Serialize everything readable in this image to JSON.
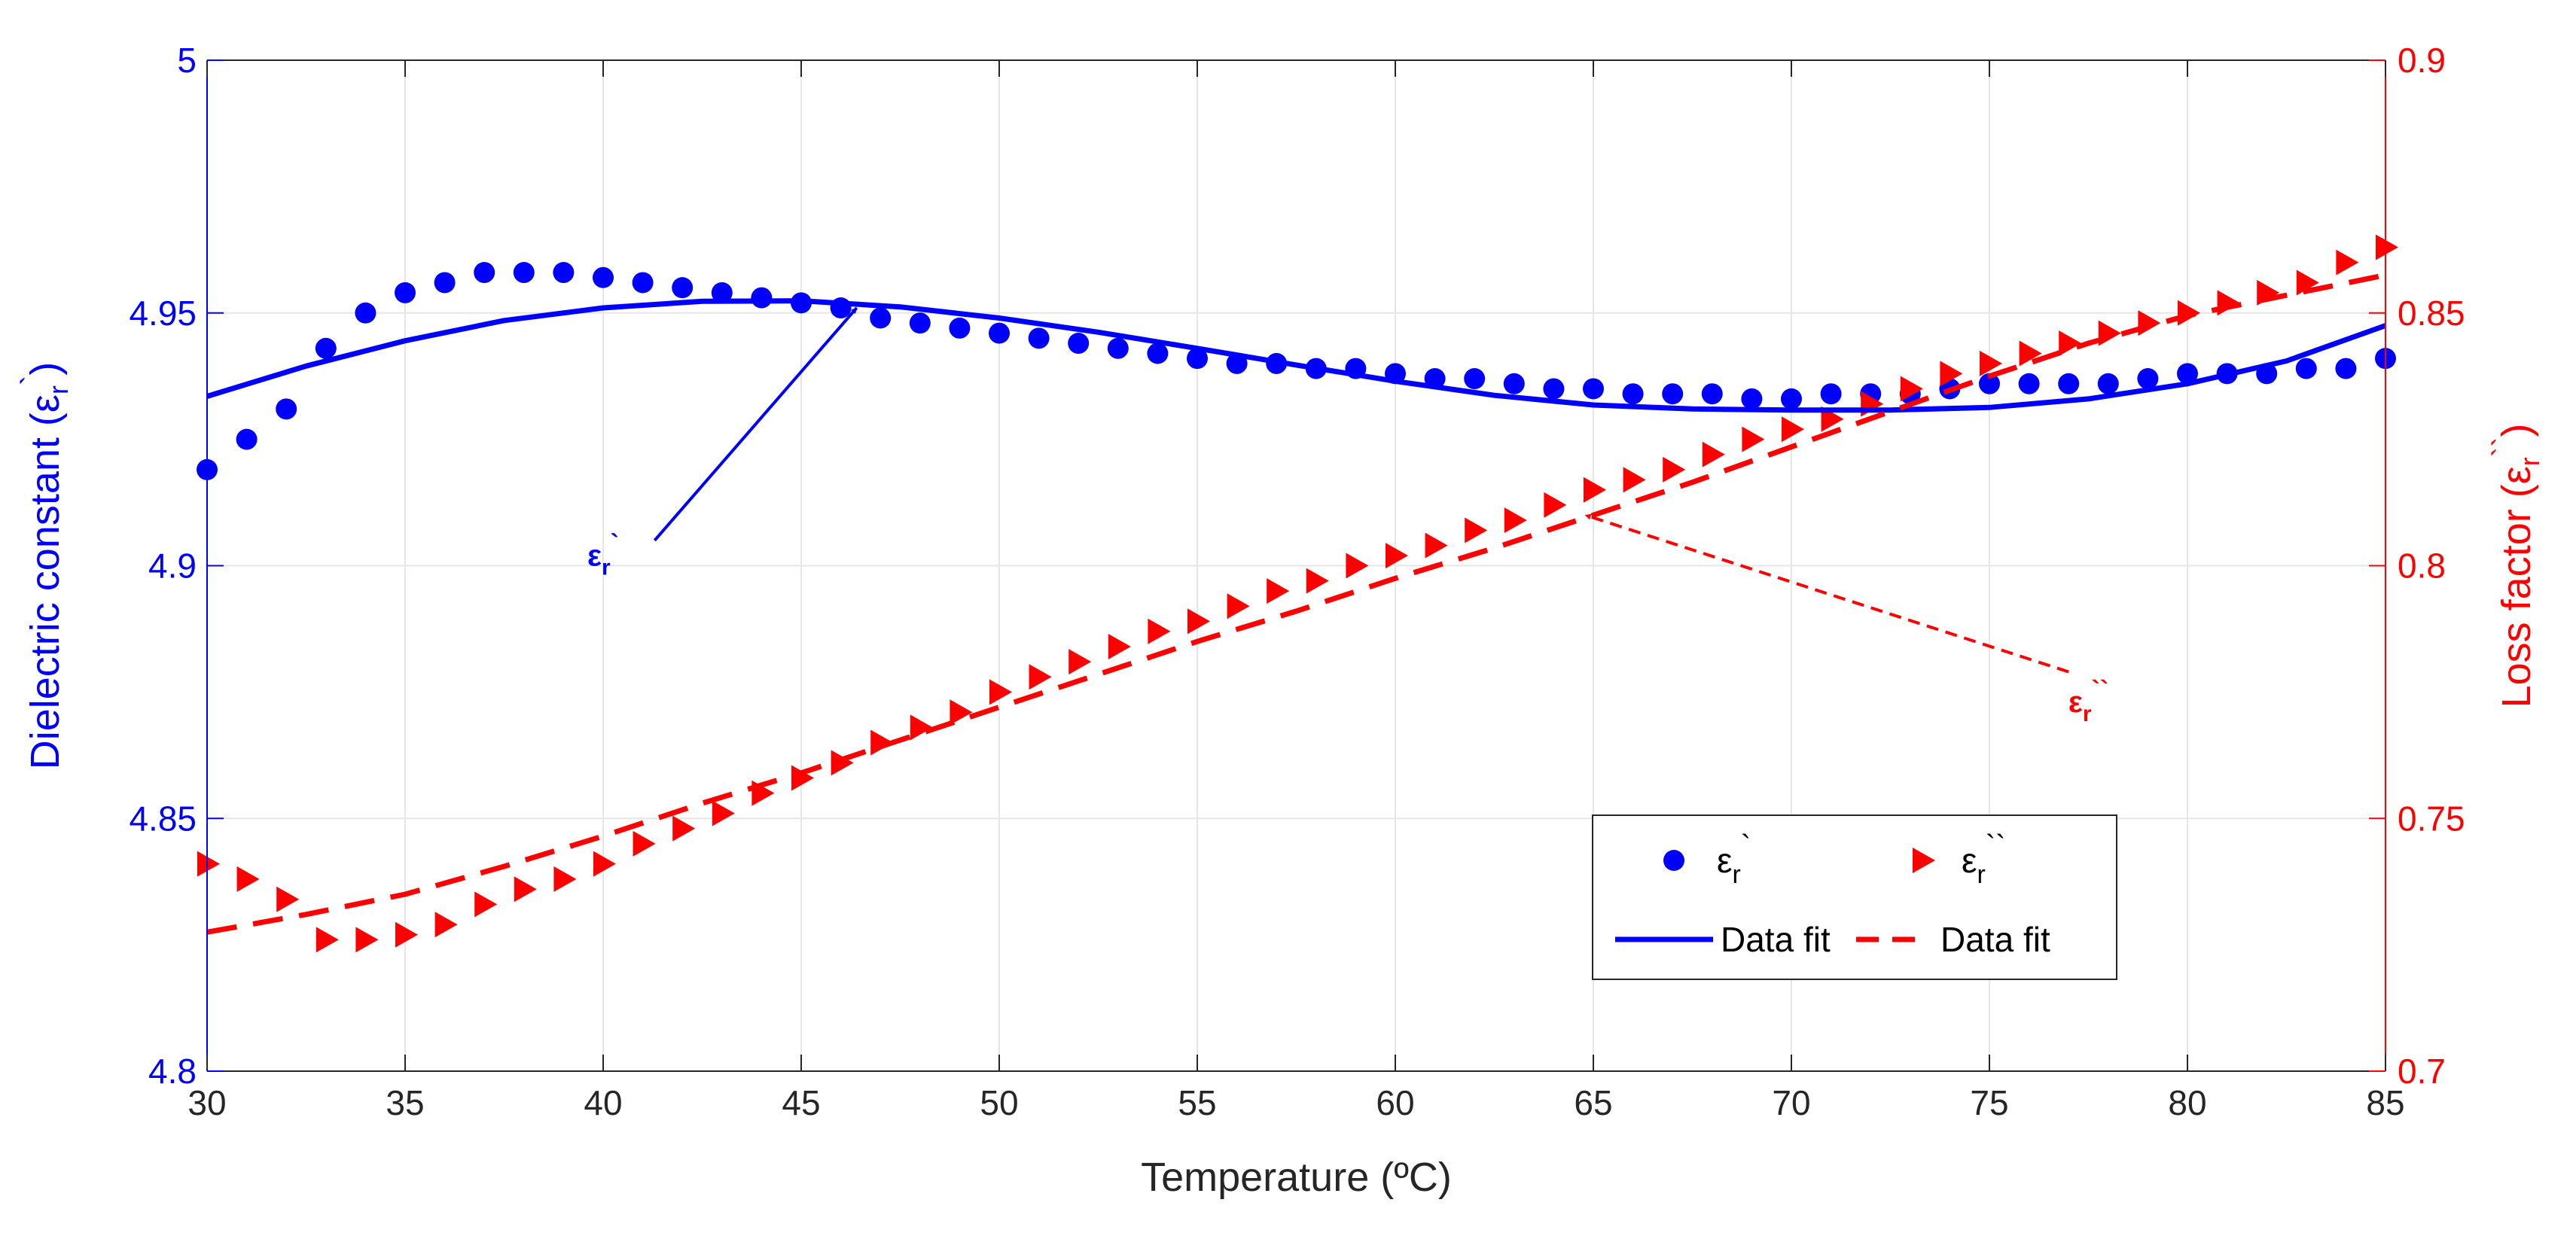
{
  "chart_data": {
    "type": "line",
    "x_axis": {
      "label": "Temperature (ºC)",
      "range": [
        30,
        85
      ],
      "ticks": [
        "30",
        "35",
        "40",
        "45",
        "50",
        "55",
        "60",
        "65",
        "70",
        "75",
        "80",
        "85"
      ]
    },
    "y_left": {
      "label_main": "Dielectric constant (ε",
      "label_sub": "r",
      "label_sup": "`",
      "label_tail": ")",
      "range": [
        4.8,
        5.0
      ],
      "ticks": [
        "4.8",
        "4.85",
        "4.9",
        "4.95",
        "5"
      ],
      "color": "#0000ff"
    },
    "y_right": {
      "label_main": "Loss factor (ε",
      "label_sub": "r",
      "label_sup": "``",
      "label_tail": ")",
      "range": [
        0.7,
        0.9
      ],
      "ticks": [
        "0.7",
        "0.75",
        "0.8",
        "0.85",
        "0.9"
      ],
      "color": "#ff0000"
    },
    "grid": true,
    "series": [
      {
        "name": "εr`",
        "kind": "markers",
        "marker": "circle",
        "axis": "left",
        "color": "#0000ff",
        "x": [
          30,
          31,
          32,
          33,
          34,
          35,
          36,
          37,
          38,
          39,
          40,
          41,
          42,
          43,
          44,
          45,
          46,
          47,
          48,
          49,
          50,
          51,
          52,
          53,
          54,
          55,
          56,
          57,
          58,
          59,
          60,
          61,
          62,
          63,
          64,
          65,
          66,
          67,
          68,
          69,
          70,
          71,
          72,
          73,
          74,
          75,
          76,
          77,
          78,
          79,
          80,
          81,
          82,
          83,
          84,
          85
        ],
        "y": [
          4.919,
          4.925,
          4.931,
          4.943,
          4.95,
          4.954,
          4.956,
          4.958,
          4.958,
          4.958,
          4.957,
          4.956,
          4.955,
          4.954,
          4.953,
          4.952,
          4.951,
          4.949,
          4.948,
          4.947,
          4.946,
          4.945,
          4.944,
          4.943,
          4.942,
          4.941,
          4.94,
          4.94,
          4.939,
          4.939,
          4.938,
          4.937,
          4.937,
          4.936,
          4.935,
          4.935,
          4.934,
          4.934,
          4.934,
          4.933,
          4.933,
          4.934,
          4.934,
          4.934,
          4.935,
          4.936,
          4.936,
          4.936,
          4.936,
          4.937,
          4.938,
          4.938,
          4.938,
          4.939,
          4.939,
          4.941
        ]
      },
      {
        "name": "εr``",
        "kind": "markers",
        "marker": "triangle-right",
        "axis": "right",
        "color": "#ff0000",
        "x": [
          30,
          31,
          32,
          33,
          34,
          35,
          36,
          37,
          38,
          39,
          40,
          41,
          42,
          43,
          44,
          45,
          46,
          47,
          48,
          49,
          50,
          51,
          52,
          53,
          54,
          55,
          56,
          57,
          58,
          59,
          60,
          61,
          62,
          63,
          64,
          65,
          66,
          67,
          68,
          69,
          70,
          71,
          72,
          73,
          74,
          75,
          76,
          77,
          78,
          79,
          80,
          81,
          82,
          83,
          84,
          85
        ],
        "y": [
          0.741,
          0.738,
          0.734,
          0.726,
          0.726,
          0.727,
          0.729,
          0.733,
          0.736,
          0.738,
          0.741,
          0.745,
          0.748,
          0.751,
          0.755,
          0.758,
          0.761,
          0.765,
          0.768,
          0.771,
          0.775,
          0.778,
          0.781,
          0.784,
          0.787,
          0.789,
          0.792,
          0.795,
          0.797,
          0.8,
          0.802,
          0.804,
          0.807,
          0.809,
          0.812,
          0.815,
          0.817,
          0.819,
          0.822,
          0.825,
          0.827,
          0.829,
          0.832,
          0.835,
          0.838,
          0.84,
          0.842,
          0.844,
          0.846,
          0.848,
          0.85,
          0.852,
          0.854,
          0.856,
          0.86,
          0.863
        ]
      },
      {
        "name": "Data fit",
        "kind": "line",
        "style": "solid",
        "axis": "left",
        "color": "#0000ff",
        "x": [
          30,
          32.5,
          35,
          37.5,
          40,
          42.5,
          45,
          47.5,
          50,
          52.5,
          55,
          57.5,
          60,
          62.5,
          65,
          67.5,
          70,
          72.5,
          75,
          77.5,
          80,
          82.5,
          85
        ],
        "y": [
          4.9335,
          4.9395,
          4.9445,
          4.9485,
          4.951,
          4.9523,
          4.9524,
          4.9512,
          4.949,
          4.9462,
          4.943,
          4.9397,
          4.9365,
          4.9337,
          4.9318,
          4.931,
          4.9308,
          4.9308,
          4.9313,
          4.933,
          4.936,
          4.9405,
          4.9475
        ]
      },
      {
        "name": "Data fit",
        "kind": "line",
        "style": "dashed",
        "axis": "right",
        "color": "#ff0000",
        "x": [
          30,
          32.5,
          35,
          37.5,
          40,
          42.5,
          45,
          47.5,
          50,
          52.5,
          55,
          57.5,
          60,
          62.5,
          65,
          67.5,
          70,
          72.5,
          75,
          77.5,
          80,
          82.5,
          85
        ],
        "y": [
          0.7275,
          0.731,
          0.735,
          0.7405,
          0.7465,
          0.753,
          0.759,
          0.7655,
          0.772,
          0.7785,
          0.785,
          0.791,
          0.7975,
          0.8035,
          0.81,
          0.8165,
          0.8235,
          0.8305,
          0.8375,
          0.844,
          0.8495,
          0.8535,
          0.8575
        ]
      }
    ],
    "legend": {
      "position": "lower-right",
      "items": [
        {
          "symbol": "circle",
          "color": "#0000ff",
          "text": "ε",
          "sub": "r",
          "sup": "`"
        },
        {
          "symbol": "triangle-right",
          "color": "#ff0000",
          "text": "ε",
          "sub": "r",
          "sup": "``"
        },
        {
          "symbol": "solid-line",
          "color": "#0000ff",
          "text": "Data fit"
        },
        {
          "symbol": "dashed-line",
          "color": "#ff0000",
          "text": "Data fit"
        }
      ]
    },
    "annotations": [
      {
        "text": "ε",
        "sub": "r",
        "sup": "`",
        "color": "#0000ff",
        "arrow": "solid",
        "from": [
          41.3,
          4.905
        ],
        "to": [
          46.4,
          4.951
        ],
        "label_at": [
          40.0,
          4.9
        ]
      },
      {
        "text": "ε",
        "sub": "r",
        "sup": "``",
        "color": "#ff0000",
        "arrow": "dashed",
        "from": [
          77.0,
          0.779
        ],
        "to": [
          64.8,
          0.81
        ],
        "label_at": [
          77.5,
          0.771
        ]
      }
    ]
  }
}
